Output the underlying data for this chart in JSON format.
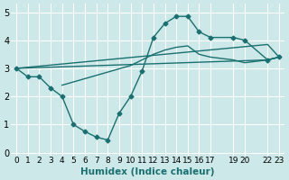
{
  "xlabel": "Humidex (Indice chaleur)",
  "ylabel": "",
  "xlim": [
    -0.5,
    23.5
  ],
  "ylim": [
    -0.1,
    5.3
  ],
  "xticks": [
    0,
    1,
    2,
    3,
    4,
    5,
    6,
    7,
    8,
    9,
    10,
    11,
    12,
    13,
    14,
    15,
    16,
    17,
    19,
    20,
    22,
    23
  ],
  "yticks": [
    0,
    1,
    2,
    3,
    4,
    5
  ],
  "bg_color": "#cde8e8",
  "grid_color": "#ffffff",
  "line_color": "#1a7070",
  "lines": [
    {
      "x": [
        0,
        1,
        2,
        3,
        4,
        5,
        6,
        7,
        8,
        9,
        10,
        11,
        12,
        13,
        14,
        15,
        16,
        17,
        19,
        20,
        22,
        23
      ],
      "y": [
        3.0,
        2.7,
        2.7,
        2.3,
        2.0,
        1.0,
        0.75,
        0.55,
        0.45,
        1.4,
        2.0,
        2.9,
        4.1,
        4.6,
        4.85,
        4.85,
        4.3,
        4.1,
        4.1,
        4.0,
        3.3,
        3.4
      ],
      "with_markers": true
    },
    {
      "x": [
        0,
        22,
        23
      ],
      "y": [
        3.0,
        3.3,
        3.4
      ],
      "with_markers": false
    },
    {
      "x": [
        0,
        22,
        23
      ],
      "y": [
        3.0,
        3.85,
        3.4
      ],
      "with_markers": false
    },
    {
      "x": [
        4,
        10,
        11,
        12,
        13,
        14,
        15,
        16,
        17,
        19,
        20,
        22,
        23
      ],
      "y": [
        2.4,
        3.1,
        3.3,
        3.5,
        3.65,
        3.75,
        3.8,
        3.5,
        3.4,
        3.3,
        3.2,
        3.3,
        3.4
      ],
      "with_markers": false
    }
  ]
}
